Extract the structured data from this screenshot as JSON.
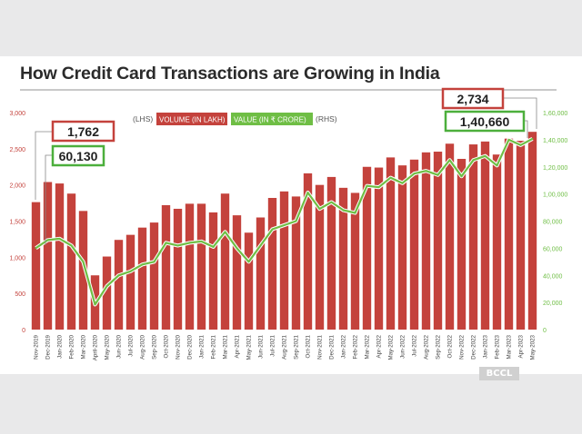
{
  "title": "How Credit Card Transactions are Growing in India",
  "watermark": "BCCL",
  "colors": {
    "bar": "#c4423c",
    "line": "#6fbe45",
    "left_axis": "#c4423c",
    "right_axis": "#6fbe45",
    "callout_red": "#c4423c",
    "callout_green": "#4caf3c"
  },
  "legend": {
    "lhs_prefix": "(LHS)",
    "lhs_label": "VOLUME (IN LAKH)",
    "rhs_label": "VALUE (IN ₹ CRORE)",
    "rhs_suffix": "(RHS)"
  },
  "callouts": {
    "first_volume": "1,762",
    "first_value": "60,130",
    "last_volume": "2,734",
    "last_value": "1,40,660"
  },
  "chart_data": {
    "type": "bar",
    "categories": [
      "Nov-2019",
      "Dec-2019",
      "Jan-2020",
      "Feb-2020",
      "Mar-2020",
      "April-2020",
      "May-2020",
      "Jun-2020",
      "Jul-2020",
      "Aug-2020",
      "Sep-2020",
      "Oct-2020",
      "Nov-2020",
      "Dec-2020",
      "Jan-2021",
      "Feb-2021",
      "Mar-2021",
      "Apr-2021",
      "May-2021",
      "Jun-2021",
      "Jul-2021",
      "Aug-2021",
      "Sep-2021",
      "Oct-2021",
      "Nov-2021",
      "Dec-2021",
      "Jan-2022",
      "Feb-2022",
      "Mar-2022",
      "Apr-2022",
      "May-2022",
      "Jun-2022",
      "Jul-2022",
      "Aug-2022",
      "Sep-2022",
      "Oct-2022",
      "Nov-2022",
      "Dec-2022",
      "Jan-2023",
      "Feb-2023",
      "Mar-2023",
      "Apr-2023",
      "May-2023"
    ],
    "series": [
      {
        "name": "VOLUME (IN LAKH)",
        "type": "bar",
        "axis": "left",
        "values": [
          1762,
          2040,
          2020,
          1880,
          1640,
          750,
          1010,
          1240,
          1310,
          1410,
          1480,
          1720,
          1670,
          1740,
          1740,
          1620,
          1880,
          1580,
          1340,
          1550,
          1820,
          1910,
          1840,
          2160,
          2000,
          2110,
          1960,
          1890,
          2250,
          2240,
          2380,
          2270,
          2350,
          2450,
          2460,
          2570,
          2360,
          2560,
          2600,
          2420,
          2640,
          2610,
          2734
        ]
      },
      {
        "name": "VALUE (IN ₹ CRORE)",
        "type": "line",
        "axis": "right",
        "values": [
          60130,
          66000,
          67000,
          62000,
          50000,
          18500,
          32000,
          40000,
          43000,
          48000,
          50000,
          64000,
          62000,
          64000,
          65000,
          61000,
          72000,
          60000,
          50000,
          62000,
          74000,
          77000,
          80000,
          101000,
          89000,
          94000,
          88000,
          86000,
          106000,
          105000,
          112000,
          108000,
          115000,
          117000,
          114000,
          125000,
          113000,
          125000,
          128000,
          121000,
          140000,
          136000,
          140660
        ]
      }
    ],
    "left_axis": {
      "ylim": [
        0,
        3000
      ],
      "ticks": [
        "0",
        "500",
        "1,000",
        "1,500",
        "2,000",
        "2,500",
        "3,000"
      ]
    },
    "right_axis": {
      "ylim": [
        0,
        160000
      ],
      "ticks": [
        "0",
        "20,000",
        "40,000",
        "60,000",
        "80,000",
        "1,00,000",
        "1,20,000",
        "1,40,000",
        "1,60,000"
      ]
    },
    "grid": false,
    "legend_position": "top-left"
  }
}
